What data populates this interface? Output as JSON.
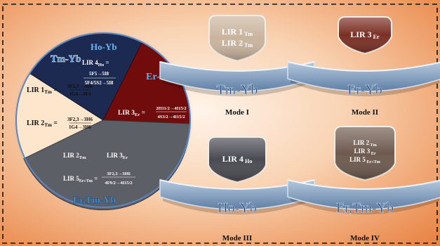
{
  "pie": {
    "tm_yb": {
      "title": "Tm-Yb",
      "lir1": "LIR 1",
      "lir1_sub": "Tm",
      "lir1_num": "3F2,3→3H6",
      "lir1_den": "1G4→3F4",
      "lir2": "LIR 2",
      "lir2_sub": "Tm",
      "lir2_num": "3F2,3→3H6",
      "lir2_den": "1G4→3H6"
    },
    "ho_yb": {
      "title": "Ho-Yb",
      "lir4": "LIR 4",
      "lir4_sub": "Ho",
      "lir4_num": "5F5→5I8",
      "lir4_den": "5F4/5S2→5I8"
    },
    "er_yb": {
      "title": "Er-Yb",
      "lir3": "LIR 3",
      "lir3_sub": "Er",
      "lir3_num": "2H11/2→4I15/2",
      "lir3_den": "4S3/2→4I15/2"
    },
    "ertm_yb": {
      "title": "Er,Tm-Yb",
      "lir2": "LIR 2",
      "lir2_sub": "Tm",
      "lir3": "LIR 3",
      "lir3_sub": "Er",
      "lir5": "LIR 5",
      "lir5_sub": "Er+Tm",
      "lir5_num": "3F2,3→3H6",
      "lir5_den": "4F9/2→4I15/2"
    }
  },
  "modes": [
    {
      "label": "Mode I",
      "base": "Tm-Yb",
      "lines": [
        [
          "LIR 1",
          "Tm"
        ],
        [
          "LIR 2",
          "Tm"
        ]
      ],
      "color": "#c9b49e"
    },
    {
      "label": "Mode II",
      "base": "Er-Yb",
      "lines": [
        [
          "LIR 3",
          "Er"
        ]
      ],
      "color": "#7a2f24"
    },
    {
      "label": "Mode III",
      "base": "Ho-Yb",
      "lines": [
        [
          "LIR 4",
          "Ho"
        ]
      ],
      "color": "#4a4a52"
    },
    {
      "label": "Mode IV",
      "base": "Er,Tm-Yb",
      "lines": [
        [
          "LIR 2",
          "Tm"
        ],
        [
          "LIR 3",
          "Er"
        ],
        [
          "LIR 5",
          "Er+Tm"
        ]
      ],
      "color": "#6e5a4e"
    }
  ],
  "colors": {
    "bg_center": "#fbe3cf",
    "bg_edge": "#ea8a4c",
    "tm": "#fde8d2",
    "ho": "#1f2d55",
    "er": "#6e0d0d",
    "ertm": "#5e6068",
    "title_blue": "#3b8fd6",
    "base_bowl": "#8ba6c4"
  }
}
